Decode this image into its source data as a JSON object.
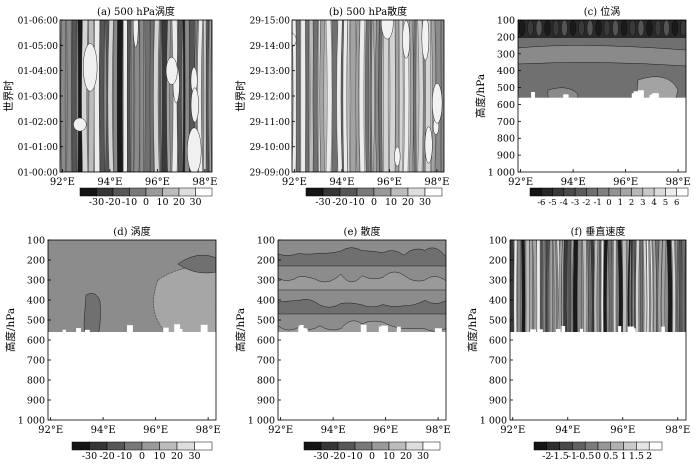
{
  "chart_data": [
    {
      "panel": "a",
      "type": "heatmap",
      "title": "(a) 500 hPa涡度",
      "ylabel": "世界时",
      "xticks": [
        "92°E",
        "94°E",
        "96°E",
        "98°E"
      ],
      "yticks": [
        "01-00:00",
        "01-01:00",
        "01-02:00",
        "01-03:00",
        "01-04:00",
        "01-05:00",
        "01-06:00"
      ],
      "colorbar": [
        "-30",
        "-20",
        "-10",
        "0",
        "10",
        "20",
        "30"
      ],
      "colorbar_range": [
        -30,
        30
      ]
    },
    {
      "panel": "b",
      "type": "heatmap",
      "title": "(b) 500 hPa散度",
      "ylabel": "世界时",
      "xticks": [
        "92°E",
        "94°E",
        "96°E",
        "98°E"
      ],
      "yticks": [
        "29-09:00",
        "29-10:00",
        "29-11:00",
        "29-12:00",
        "29-13:00",
        "29-14:00",
        "29-15:00"
      ],
      "colorbar": [
        "-30",
        "-20",
        "-10",
        "0",
        "10",
        "20",
        "30"
      ],
      "colorbar_range": [
        -30,
        30
      ]
    },
    {
      "panel": "c",
      "type": "heatmap",
      "title": "(c) 位涡",
      "ylabel": "高度/hPa",
      "xticks": [
        "92°E",
        "94°E",
        "96°E",
        "98°E"
      ],
      "yticks": [
        "100",
        "200",
        "300",
        "400",
        "500",
        "600",
        "700",
        "800",
        "900",
        "1 000"
      ],
      "colorbar": [
        "-6",
        "-5",
        "-4",
        "-3",
        "-2",
        "-1",
        "0",
        "1",
        "2",
        "3",
        "4",
        "5",
        "6"
      ],
      "colorbar_range": [
        -6,
        6
      ]
    },
    {
      "panel": "d",
      "type": "heatmap",
      "title": "(d) 涡度",
      "ylabel": "高度/hPa",
      "xticks": [
        "92°E",
        "94°E",
        "96°E",
        "98°E"
      ],
      "yticks": [
        "100",
        "200",
        "300",
        "400",
        "500",
        "600",
        "700",
        "800",
        "900",
        "1 000"
      ],
      "colorbar": [
        "-30",
        "-20",
        "-10",
        "0",
        "10",
        "20",
        "30"
      ],
      "colorbar_range": [
        -30,
        30
      ]
    },
    {
      "panel": "e",
      "type": "heatmap",
      "title": "(e) 散度",
      "ylabel": "高度/hPa",
      "xticks": [
        "92°E",
        "94°E",
        "96°E",
        "98°E"
      ],
      "yticks": [
        "100",
        "200",
        "300",
        "400",
        "500",
        "600",
        "700",
        "800",
        "900",
        "1 000"
      ],
      "colorbar": [
        "-30",
        "-20",
        "-10",
        "0",
        "10",
        "20",
        "30"
      ],
      "colorbar_range": [
        -30,
        30
      ]
    },
    {
      "panel": "f",
      "type": "heatmap",
      "title": "(f) 垂直速度",
      "ylabel": "高度/hPa",
      "xticks": [
        "92°E",
        "94°E",
        "96°E",
        "98°E"
      ],
      "yticks": [
        "100",
        "200",
        "300",
        "400",
        "500",
        "600",
        "700",
        "800",
        "900",
        "1 000"
      ],
      "colorbar": [
        "-2",
        "-1.5",
        "-1",
        "-0.5",
        "0",
        "0.5",
        "1",
        "1.5",
        "2"
      ],
      "colorbar_range": [
        -2,
        2
      ]
    }
  ]
}
